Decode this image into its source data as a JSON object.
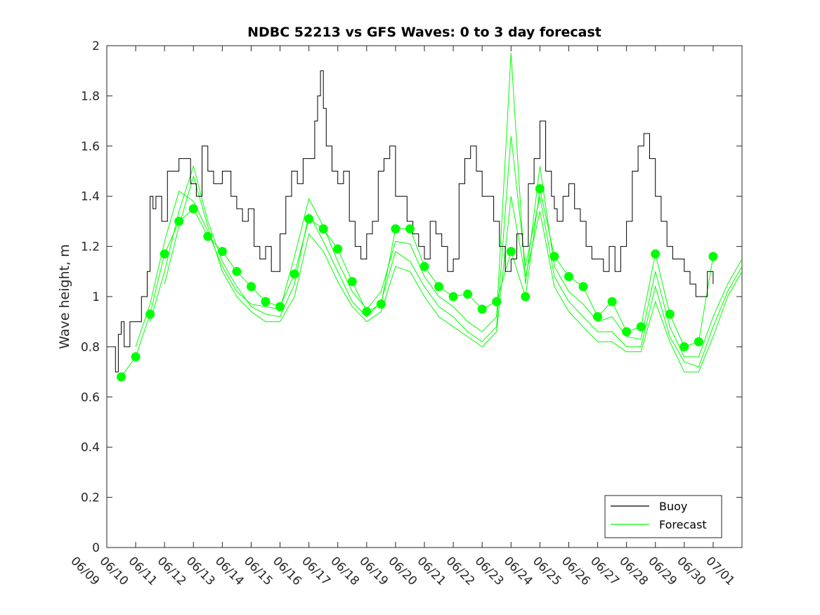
{
  "chart_data": {
    "type": "line",
    "title": "NDBC 52213 vs GFS Waves: 0 to 3 day forecast",
    "xlabel": "",
    "ylabel": "Wave height, m",
    "ylim": [
      0,
      2
    ],
    "yticks": [
      "0",
      "0.2",
      "0.4",
      "0.6",
      "0.8",
      "1",
      "1.2",
      "1.4",
      "1.6",
      "1.8",
      "2"
    ],
    "xlim_days": [
      0,
      22
    ],
    "xticks": [
      "06/09",
      "06/10",
      "06/11",
      "06/12",
      "06/13",
      "06/14",
      "06/15",
      "06/16",
      "06/17",
      "06/18",
      "06/19",
      "06/20",
      "06/21",
      "06/22",
      "06/23",
      "06/24",
      "06/25",
      "06/26",
      "06/27",
      "06/28",
      "06/29",
      "06/30",
      "07/01"
    ],
    "grid": false,
    "legend_position": "bottom-right",
    "colors": {
      "buoy": "#000000",
      "forecast": "#00ff00",
      "axes": "#262626"
    },
    "legend": [
      {
        "label": "Buoy",
        "color": "#000000"
      },
      {
        "label": "Forecast",
        "color": "#00ff00"
      }
    ],
    "buoy": {
      "name": "Buoy",
      "x": [
        0.2,
        0.3,
        0.4,
        0.5,
        0.6,
        0.8,
        1.0,
        1.2,
        1.4,
        1.5,
        1.6,
        1.7,
        1.9,
        2.1,
        2.3,
        2.5,
        2.7,
        2.9,
        3.1,
        3.3,
        3.5,
        3.7,
        4.0,
        4.3,
        4.5,
        4.7,
        4.9,
        5.1,
        5.3,
        5.5,
        5.7,
        6.0,
        6.2,
        6.4,
        6.6,
        6.8,
        7.0,
        7.2,
        7.3,
        7.4,
        7.5,
        7.6,
        7.8,
        8.0,
        8.2,
        8.4,
        8.6,
        8.8,
        9.0,
        9.2,
        9.4,
        9.6,
        9.8,
        10.0,
        10.2,
        10.4,
        10.6,
        10.8,
        11.0,
        11.2,
        11.4,
        11.6,
        11.8,
        12.0,
        12.2,
        12.4,
        12.6,
        12.8,
        13.0,
        13.2,
        13.4,
        13.6,
        13.8,
        14.0,
        14.2,
        14.4,
        14.6,
        14.8,
        15.0,
        15.2,
        15.4,
        15.5,
        15.6,
        15.8,
        16.0,
        16.2,
        16.4,
        16.6,
        16.8,
        17.0,
        17.2,
        17.4,
        17.6,
        17.8,
        18.0,
        18.2,
        18.4,
        18.6,
        18.8,
        19.0,
        19.2,
        19.4,
        19.6,
        19.8,
        20.0,
        20.2,
        20.4,
        20.6,
        20.8,
        21.0
      ],
      "y": [
        0.8,
        0.7,
        0.85,
        0.9,
        0.8,
        0.9,
        0.9,
        1.0,
        1.1,
        1.4,
        1.35,
        1.4,
        1.3,
        1.5,
        1.5,
        1.55,
        1.55,
        1.45,
        1.4,
        1.6,
        1.5,
        1.45,
        1.5,
        1.4,
        1.35,
        1.3,
        1.35,
        1.2,
        1.15,
        1.2,
        1.1,
        1.25,
        1.4,
        1.5,
        1.45,
        1.55,
        1.55,
        1.7,
        1.8,
        1.9,
        1.75,
        1.6,
        1.5,
        1.45,
        1.5,
        1.3,
        1.2,
        1.15,
        1.25,
        1.3,
        1.5,
        1.55,
        1.6,
        1.4,
        1.4,
        1.3,
        1.25,
        1.2,
        1.15,
        1.3,
        1.25,
        1.2,
        1.1,
        1.15,
        1.45,
        1.55,
        1.6,
        1.5,
        1.4,
        1.4,
        1.3,
        1.2,
        1.1,
        1.15,
        1.25,
        1.2,
        1.45,
        1.55,
        1.7,
        1.5,
        1.4,
        1.35,
        1.3,
        1.4,
        1.45,
        1.35,
        1.3,
        1.2,
        1.15,
        1.15,
        1.1,
        1.2,
        1.1,
        1.2,
        1.3,
        1.5,
        1.6,
        1.65,
        1.55,
        1.4,
        1.3,
        1.2,
        1.15,
        1.15,
        1.1,
        1.05,
        1.0,
        1.0,
        1.1,
        1.05
      ]
    },
    "forecast_points": {
      "name": "Forecast",
      "x": [
        0.5,
        1.0,
        1.5,
        2.0,
        2.5,
        3.0,
        3.5,
        4.0,
        4.5,
        5.0,
        5.5,
        6.0,
        6.5,
        7.0,
        7.5,
        8.0,
        8.5,
        9.0,
        9.5,
        10.0,
        10.5,
        11.0,
        11.5,
        12.0,
        12.5,
        13.0,
        13.5,
        14.0,
        14.5,
        15.0,
        15.5,
        16.0,
        16.5,
        17.0,
        17.5,
        18.0,
        18.5,
        19.0,
        19.5,
        20.0,
        20.5,
        21.0
      ],
      "y": [
        0.68,
        0.76,
        0.93,
        1.17,
        1.3,
        1.35,
        1.24,
        1.18,
        1.1,
        1.04,
        0.98,
        0.96,
        1.09,
        1.31,
        1.27,
        1.19,
        1.06,
        0.94,
        0.97,
        1.27,
        1.27,
        1.12,
        1.04,
        1.0,
        1.01,
        0.95,
        0.98,
        1.18,
        1.0,
        1.43,
        1.16,
        1.08,
        1.04,
        0.92,
        0.98,
        0.86,
        0.88,
        1.17,
        0.93,
        0.8,
        0.82,
        1.16
      ]
    },
    "forecast_lines": [
      {
        "x": [
          0.5,
          1.0,
          1.5,
          2.0,
          2.5,
          3.0,
          3.5,
          4.0,
          4.5,
          5.0,
          5.5,
          6.0,
          6.5,
          7.0,
          7.5,
          8.0,
          8.5,
          9.0,
          9.5,
          10.0,
          10.5,
          11.0,
          11.5,
          12.0,
          12.5,
          13.0,
          13.5,
          14.0,
          14.5,
          15.0,
          15.5,
          16.0,
          16.5,
          17.0,
          17.5,
          18.0,
          18.5,
          19.0,
          19.5,
          20.0,
          20.5,
          21.0
        ],
        "y": [
          0.68,
          0.76,
          0.93,
          1.17,
          1.3,
          1.35,
          1.24,
          1.18,
          1.1,
          1.04,
          0.98,
          0.96,
          1.09,
          1.31,
          1.27,
          1.19,
          1.06,
          0.94,
          0.97,
          1.27,
          1.27,
          1.12,
          1.04,
          1.0,
          1.01,
          0.95,
          0.98,
          1.18,
          1.0,
          1.43,
          1.16,
          1.08,
          1.04,
          0.92,
          0.98,
          0.86,
          0.88,
          1.17,
          0.93,
          0.8,
          0.82,
          1.16
        ]
      },
      {
        "x": [
          1.0,
          1.5,
          2.0,
          2.5,
          3.0,
          3.5,
          4.0,
          4.5,
          5.0,
          5.5,
          6.0,
          6.5,
          7.0,
          7.5,
          8.0,
          8.5,
          9.0,
          9.5,
          10.0,
          10.5,
          11.0,
          11.5,
          12.0,
          12.5,
          13.0,
          13.5,
          14.0,
          14.5,
          15.0,
          15.5,
          16.0,
          16.5,
          17.0,
          17.5,
          18.0,
          18.5,
          19.0,
          19.5,
          20.0,
          20.5,
          21.0,
          21.5,
          22.0
        ],
        "y": [
          0.8,
          0.97,
          1.22,
          1.42,
          1.38,
          1.26,
          1.12,
          1.02,
          0.97,
          0.96,
          0.95,
          1.16,
          1.39,
          1.28,
          1.14,
          1.02,
          0.95,
          1.02,
          1.22,
          1.21,
          1.08,
          1.0,
          0.96,
          0.9,
          0.86,
          0.92,
          1.97,
          1.05,
          1.52,
          1.12,
          1.02,
          0.97,
          0.9,
          0.92,
          0.84,
          0.83,
          1.1,
          0.88,
          0.76,
          0.76,
          0.92,
          1.05,
          1.15
        ]
      },
      {
        "x": [
          1.5,
          2.0,
          2.5,
          3.0,
          3.5,
          4.0,
          4.5,
          5.0,
          5.5,
          6.0,
          6.5,
          7.0,
          7.5,
          8.0,
          8.5,
          9.0,
          9.5,
          10.0,
          10.5,
          11.0,
          11.5,
          12.0,
          12.5,
          13.0,
          13.5,
          14.0,
          14.5,
          15.0,
          15.5,
          16.0,
          16.5,
          17.0,
          17.5,
          18.0,
          18.5,
          19.0,
          19.5,
          20.0,
          20.5,
          21.0,
          21.5,
          22.0
        ],
        "y": [
          0.9,
          1.1,
          1.34,
          1.52,
          1.3,
          1.14,
          1.04,
          0.96,
          0.93,
          0.92,
          1.05,
          1.33,
          1.22,
          1.1,
          0.98,
          0.92,
          0.98,
          1.18,
          1.14,
          1.04,
          0.96,
          0.92,
          0.86,
          0.82,
          0.88,
          1.64,
          1.12,
          1.4,
          1.08,
          0.98,
          0.92,
          0.86,
          0.86,
          0.8,
          0.8,
          1.04,
          0.84,
          0.74,
          0.72,
          0.88,
          1.02,
          1.12
        ]
      },
      {
        "x": [
          2.0,
          2.5,
          3.0,
          3.5,
          4.0,
          4.5,
          5.0,
          5.5,
          6.0,
          6.5,
          7.0,
          7.5,
          8.0,
          8.5,
          9.0,
          9.5,
          10.0,
          10.5,
          11.0,
          11.5,
          12.0,
          12.5,
          13.0,
          13.5,
          14.0,
          14.5,
          15.0,
          15.5,
          16.0,
          16.5,
          17.0,
          17.5,
          18.0,
          18.5,
          19.0,
          19.5,
          20.0,
          20.5,
          21.0,
          21.5,
          22.0
        ],
        "y": [
          1.05,
          1.28,
          1.48,
          1.28,
          1.1,
          1.0,
          0.94,
          0.9,
          0.9,
          1.0,
          1.25,
          1.18,
          1.06,
          0.96,
          0.9,
          0.94,
          1.12,
          1.1,
          1.0,
          0.92,
          0.88,
          0.84,
          0.8,
          0.86,
          1.4,
          1.08,
          1.34,
          1.04,
          0.94,
          0.88,
          0.82,
          0.82,
          0.78,
          0.78,
          0.98,
          0.82,
          0.7,
          0.7,
          0.84,
          1.0,
          1.1
        ]
      }
    ]
  }
}
